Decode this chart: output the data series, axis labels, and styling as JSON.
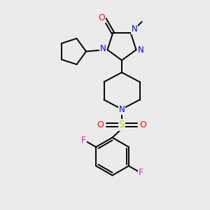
{
  "background_color": "#ebebeb",
  "colors": {
    "bond": "#000000",
    "N": "#0000ff",
    "O": "#ff0000",
    "S": "#cccc00",
    "F": "#ff00ff"
  },
  "lw": 1.4
}
